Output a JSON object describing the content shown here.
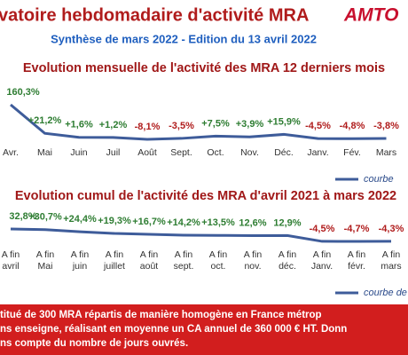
{
  "header": {
    "title": "vatoire hebdomadaire d'activité MRA",
    "logo": "AMTO",
    "subtitle": "Synthèse de mars 2022 - Edition du 13 avril 2022"
  },
  "chart_data": [
    {
      "type": "line",
      "title": "Evolution mensuelle de l'activité des MRA 12 derniers mois",
      "categories": [
        "Avr.",
        "Mai",
        "Juin",
        "Juil",
        "Août",
        "Sept.",
        "Oct.",
        "Nov.",
        "Déc.",
        "Janv.",
        "Fév.",
        "Mars"
      ],
      "values": [
        160.3,
        21.2,
        1.6,
        1.2,
        -8.1,
        -3.5,
        7.5,
        3.9,
        15.9,
        -4.5,
        -4.8,
        -3.8
      ],
      "value_labels": [
        "160,3%",
        "+21,2%",
        "+1,6%",
        "+1,2%",
        "-8,1%",
        "-3,5%",
        "+7,5%",
        "+3,9%",
        "+15,9%",
        "-4,5%",
        "-4,8%",
        "-3,8%"
      ],
      "color": "#3e5c9a",
      "positive_color": "#2e7d32",
      "negative_color": "#b01c1c",
      "legend": "courbe"
    },
    {
      "type": "line",
      "title": "Evolution cumul de l'activité des MRA d'avril 2021 à mars 2022",
      "category_prefix": "A fin",
      "categories": [
        "avril",
        "Mai",
        "juin",
        "juillet",
        "août",
        "sept.",
        "oct.",
        "nov.",
        "déc.",
        "Janv.",
        "févr.",
        "mars"
      ],
      "values": [
        32.8,
        30.7,
        24.4,
        19.3,
        16.7,
        14.2,
        13.5,
        12.6,
        12.9,
        -4.5,
        -4.7,
        -4.3
      ],
      "value_labels": [
        "32,8%",
        "+30,7%",
        "+24,4%",
        "+19,3%",
        "+16,7%",
        "+14,2%",
        "+13,5%",
        "12,6%",
        "12,9%",
        "-4,5%",
        "-4,7%",
        "-4,3%"
      ],
      "color": "#3e5c9a",
      "positive_color": "#2e7d32",
      "negative_color": "#b01c1c",
      "legend": "courbe de"
    }
  ],
  "footer": {
    "lines": [
      "titué de 300 MRA répartis de manière homogène en France métrop",
      "ns enseigne, réalisant en moyenne un CA annuel de 360 000 € HT. Donn",
      "ns compte du nombre de jours ouvrés."
    ]
  }
}
